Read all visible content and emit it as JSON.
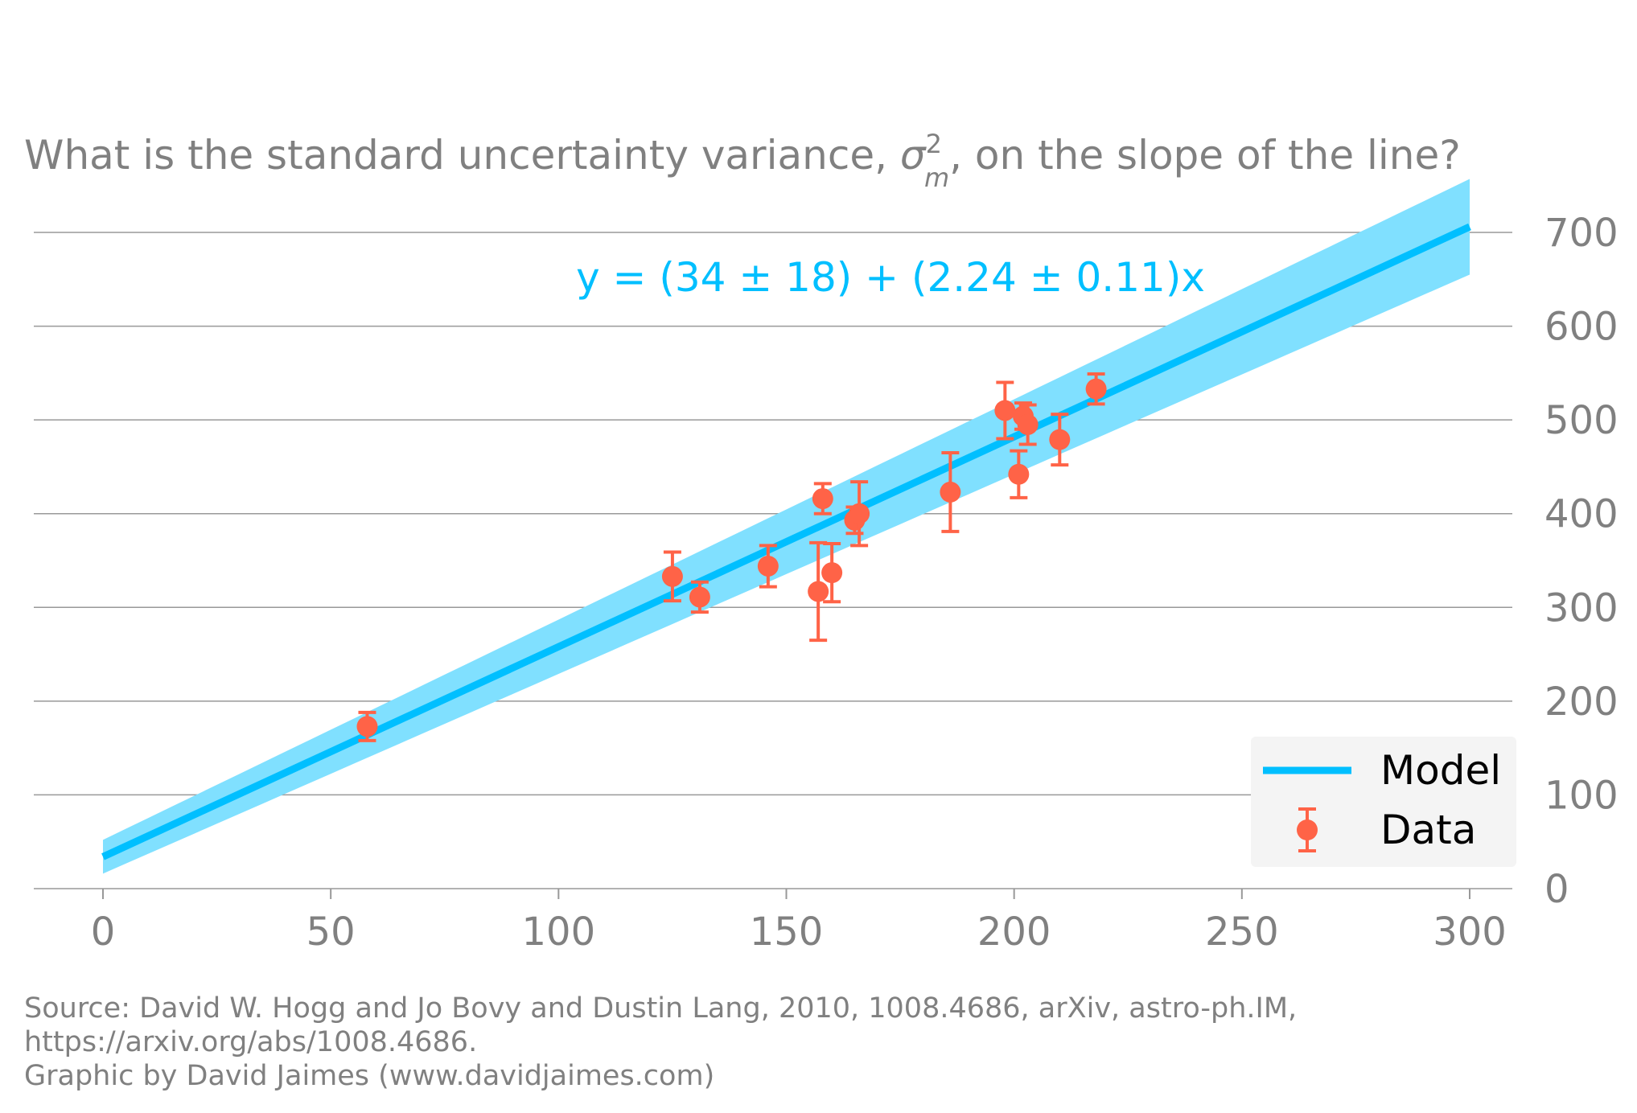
{
  "title": {
    "prefix": "What is the standard uncertainty variance, ",
    "symbol": "σ",
    "superscript": "2",
    "subscript": "m",
    "suffix": ", on the slope of the line?"
  },
  "source": {
    "line1": "Source: David W. Hogg and Jo Bovy and Dustin Lang, 2010, 1008.4686, arXiv, astro-ph.IM,",
    "line2": "https://arxiv.org/abs/1008.4686.",
    "line3": "Graphic by David Jaimes (www.davidjaimes.com)"
  },
  "chart_data": {
    "type": "scatter",
    "title": "What is the standard uncertainty variance, σ²ₘ, on the slope of the line?",
    "xlim": [
      -15,
      312
    ],
    "ylim": [
      0,
      700
    ],
    "x_ticks": [
      0,
      50,
      100,
      150,
      200,
      250,
      300
    ],
    "x_tick_labels": [
      "0",
      "50",
      "100",
      "150",
      "200",
      "250",
      "300"
    ],
    "y_ticks": [
      0,
      100,
      200,
      300,
      400,
      500,
      600,
      700
    ],
    "y_tick_labels": [
      "0",
      "100",
      "200",
      "300",
      "400",
      "500",
      "600",
      "700"
    ],
    "y_axis_side": "right",
    "grid": "horizontal",
    "annotation": "y = (34 ± 18) + (2.24 ± 0.11)x",
    "model": {
      "intercept": 34,
      "intercept_err": 18,
      "slope": 2.24,
      "slope_err": 0.11,
      "x_range": [
        0,
        300
      ]
    },
    "series": [
      {
        "name": "Data",
        "x": [
          58,
          125,
          131,
          146,
          157,
          158,
          160,
          165,
          166,
          186,
          198,
          201,
          202,
          203,
          210,
          218
        ],
        "y": [
          173,
          333,
          311,
          344,
          317,
          416,
          337,
          393,
          400,
          423,
          510,
          442,
          504,
          495,
          479,
          533
        ],
        "y_err": [
          15,
          26,
          16,
          22,
          52,
          16,
          31,
          14,
          34,
          42,
          30,
          25,
          14,
          21,
          27,
          16
        ]
      }
    ],
    "legend": {
      "placement": "bottom-right",
      "entries": [
        "Model",
        "Data"
      ]
    }
  },
  "colors": {
    "model_line": "#00bfff",
    "model_band": "#80e0ff",
    "data_points": "#ff6347",
    "grid": "#999999",
    "text": "#808080",
    "legend_bg": "#f4f4f4"
  }
}
